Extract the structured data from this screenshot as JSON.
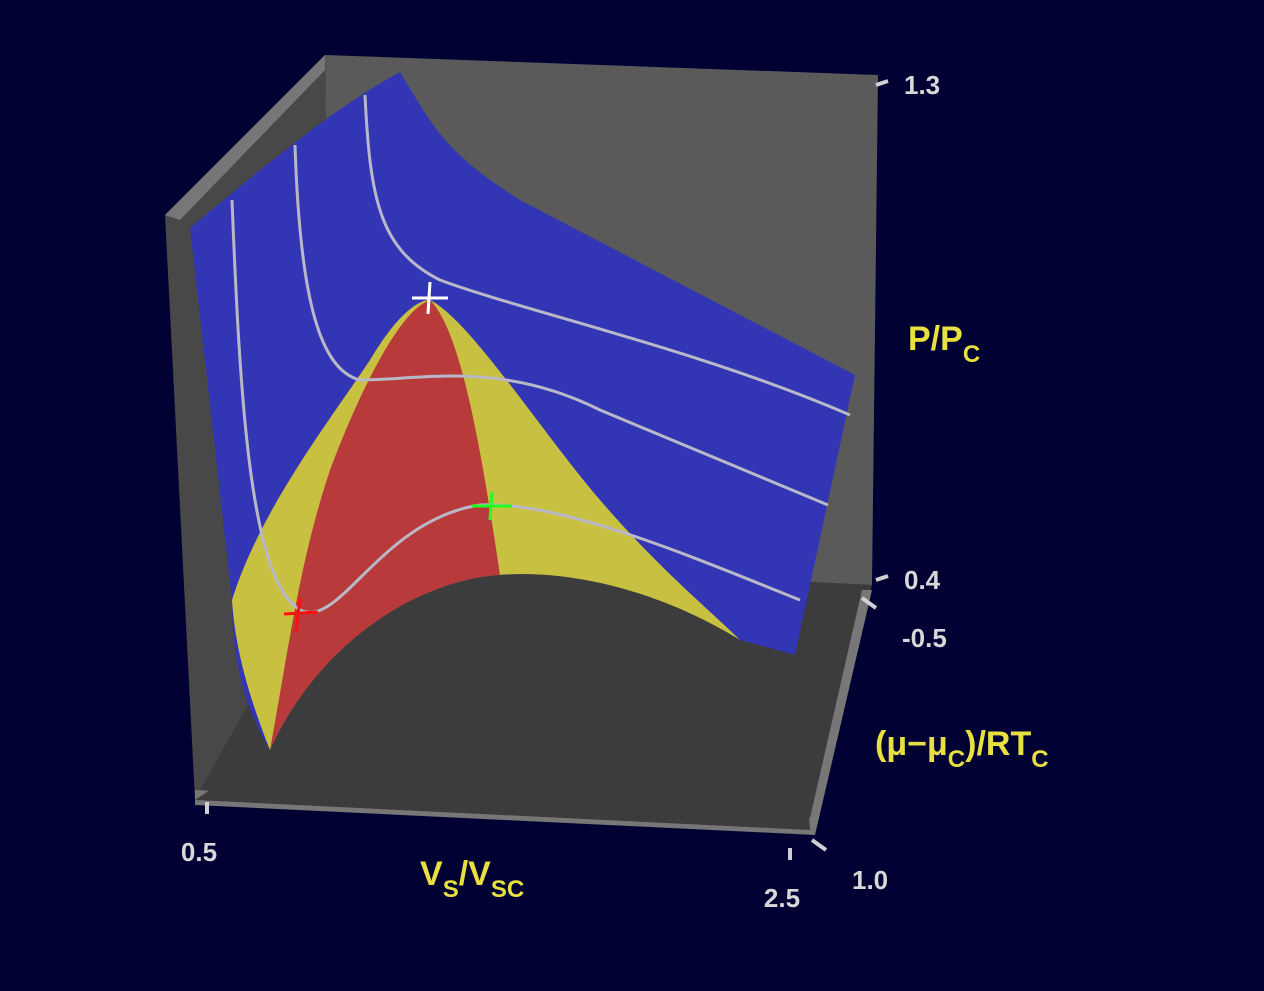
{
  "chart_data": {
    "type": "surface3d",
    "xlabel": [
      "V",
      "S",
      "/V",
      "SC"
    ],
    "ylabel": [
      "(μ−μ",
      "C",
      ")/RT",
      "C"
    ],
    "zlabel": [
      "P/P",
      "C"
    ],
    "xlim": [
      0.5,
      2.5
    ],
    "xticks": [
      0.5,
      2.5
    ],
    "ylim": [
      -0.5,
      1.0
    ],
    "yticks": [
      -0.5,
      {
        "value": 1.0,
        "label": "1.0"
      }
    ],
    "zlim": [
      0.4,
      1.3
    ],
    "zticks": [
      0.4,
      1.3
    ]
  }
}
